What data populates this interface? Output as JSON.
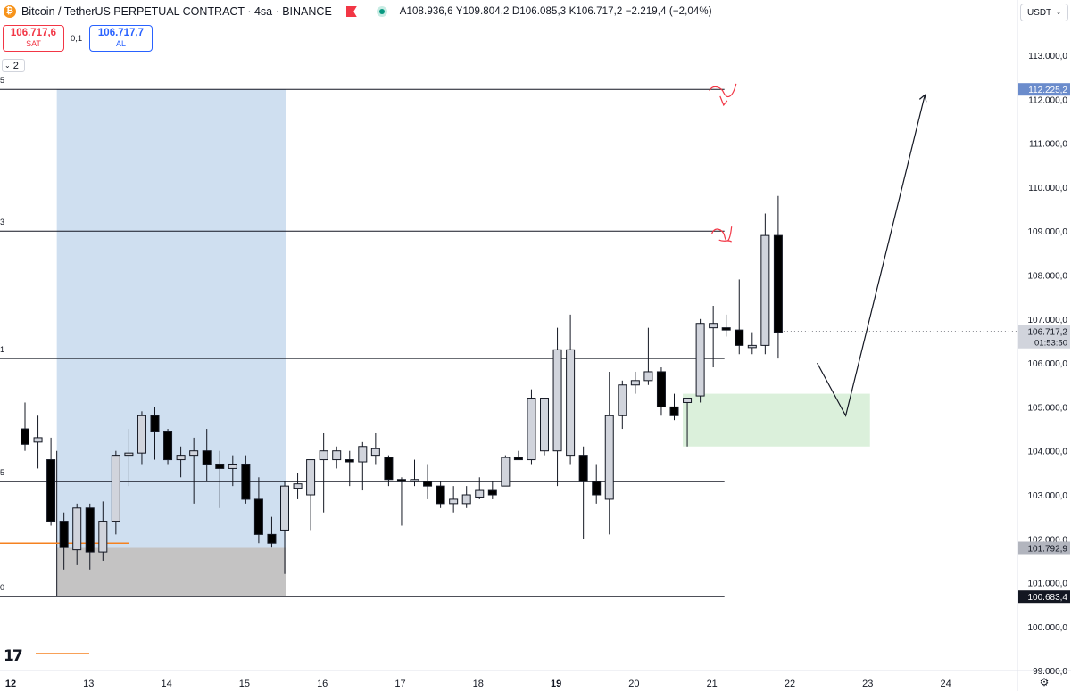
{
  "header": {
    "title": "Bitcoin / TetherUS PERPETUAL CONTRACT · 4sa · BINANCE",
    "ohlc": "A108.936,6 Y109.804,2 D106.085,3 K106.717,2 −2.219,4 (−2,04%)",
    "logo_glyph": "₿"
  },
  "trade": {
    "sell_price": "106.717,6",
    "sell_label": "SAT",
    "spread": "0,1",
    "buy_price": "106.717,7",
    "buy_label": "AL"
  },
  "indicators": {
    "count": "2",
    "chevron": "⌄"
  },
  "currency": {
    "label": "USDT",
    "chevron": "⌄"
  },
  "logo_text": "17",
  "settings_glyph": "⚙",
  "colors": {
    "bull_fill": "#d1d4dc",
    "bear_fill": "#000000",
    "candle_border": "#131722",
    "range_box": "#cfdff0",
    "discount_box": "#c4c3c3",
    "demand_zone": "#dbf0db",
    "annotation": "#f23645",
    "highlight_label": "#6b8ccc",
    "orange": "#f58220"
  },
  "chart_data": {
    "type": "candlestick",
    "timeframe": "4sa",
    "ylim": [
      98900,
      113600
    ],
    "xlabels": [
      {
        "label": "12",
        "x": 0,
        "bold": true
      },
      {
        "label": "13",
        "x": 6
      },
      {
        "label": "14",
        "x": 12
      },
      {
        "label": "15",
        "x": 18
      },
      {
        "label": "16",
        "x": 24
      },
      {
        "label": "17",
        "x": 30
      },
      {
        "label": "18",
        "x": 36
      },
      {
        "label": "19",
        "x": 42,
        "bold": true
      },
      {
        "label": "20",
        "x": 48
      },
      {
        "label": "21",
        "x": 54
      },
      {
        "label": "22",
        "x": 60
      },
      {
        "label": "23",
        "x": 66
      },
      {
        "label": "24",
        "x": 72
      }
    ],
    "yticks": [
      {
        "value": 113000,
        "label": "113.000,0"
      },
      {
        "value": 112000,
        "label": "112.000,0"
      },
      {
        "value": 111000,
        "label": "111.000,0"
      },
      {
        "value": 110000,
        "label": "110.000,0"
      },
      {
        "value": 109000,
        "label": "109.000,0"
      },
      {
        "value": 108000,
        "label": "108.000,0"
      },
      {
        "value": 107000,
        "label": "107.000,0"
      },
      {
        "value": 106000,
        "label": "106.000,0"
      },
      {
        "value": 105000,
        "label": "105.000,0"
      },
      {
        "value": 104000,
        "label": "104.000,0"
      },
      {
        "value": 103000,
        "label": "103.000,0"
      },
      {
        "value": 102000,
        "label": "102.000,0"
      },
      {
        "value": 101000,
        "label": "101.000,0"
      },
      {
        "value": 100000,
        "label": "100.000,0"
      },
      {
        "value": 99000,
        "label": "99.000,0"
      }
    ],
    "price_labels": [
      {
        "value": 112225.2,
        "label": "112.225,2",
        "style": "highlight"
      },
      {
        "value": 106717.2,
        "label": "106.717,2",
        "sub": "01:53:50",
        "style": "current"
      },
      {
        "value": 101792.9,
        "label": "101.792,9",
        "style": "gray"
      },
      {
        "value": 100683.4,
        "label": "100.683,4",
        "style": "dark"
      }
    ],
    "candles": [
      {
        "x": 1.1,
        "o": 104500,
        "h": 105100,
        "l": 104000,
        "c": 104150
      },
      {
        "x": 2.1,
        "o": 104200,
        "h": 104800,
        "l": 103600,
        "c": 104300
      },
      {
        "x": 3.1,
        "o": 103800,
        "h": 104300,
        "l": 102300,
        "c": 102400
      },
      {
        "x": 4.1,
        "o": 102400,
        "h": 102600,
        "l": 101300,
        "c": 101800
      },
      {
        "x": 5.1,
        "o": 101750,
        "h": 102800,
        "l": 101400,
        "c": 102700
      },
      {
        "x": 6.1,
        "o": 102700,
        "h": 102800,
        "l": 101300,
        "c": 101700
      },
      {
        "x": 7.1,
        "o": 101700,
        "h": 102850,
        "l": 101500,
        "c": 102400
      },
      {
        "x": 8.1,
        "o": 102400,
        "h": 104000,
        "l": 102100,
        "c": 103900
      },
      {
        "x": 9.1,
        "o": 103900,
        "h": 104500,
        "l": 103200,
        "c": 103950
      },
      {
        "x": 10.1,
        "o": 103950,
        "h": 104900,
        "l": 103700,
        "c": 104800
      },
      {
        "x": 11.1,
        "o": 104800,
        "h": 105000,
        "l": 103800,
        "c": 104450
      },
      {
        "x": 12.1,
        "o": 104450,
        "h": 104500,
        "l": 103700,
        "c": 103800
      },
      {
        "x": 13.1,
        "o": 103800,
        "h": 104100,
        "l": 103400,
        "c": 103900
      },
      {
        "x": 14.1,
        "o": 103900,
        "h": 104300,
        "l": 102800,
        "c": 104000
      },
      {
        "x": 15.1,
        "o": 104000,
        "h": 104500,
        "l": 103300,
        "c": 103700
      },
      {
        "x": 16.1,
        "o": 103700,
        "h": 104000,
        "l": 102700,
        "c": 103600
      },
      {
        "x": 17.1,
        "o": 103600,
        "h": 103900,
        "l": 103200,
        "c": 103700
      },
      {
        "x": 18.1,
        "o": 103700,
        "h": 103900,
        "l": 102800,
        "c": 102900
      },
      {
        "x": 19.1,
        "o": 102900,
        "h": 103400,
        "l": 101900,
        "c": 102100
      },
      {
        "x": 20.1,
        "o": 102100,
        "h": 102500,
        "l": 101800,
        "c": 101900
      },
      {
        "x": 21.1,
        "o": 102200,
        "h": 103300,
        "l": 101200,
        "c": 103200
      },
      {
        "x": 22.1,
        "o": 103150,
        "h": 103500,
        "l": 102900,
        "c": 103250
      },
      {
        "x": 23.1,
        "o": 103000,
        "h": 103800,
        "l": 102200,
        "c": 103800
      },
      {
        "x": 24.1,
        "o": 103800,
        "h": 104400,
        "l": 102600,
        "c": 104000
      },
      {
        "x": 25.1,
        "o": 103800,
        "h": 104100,
        "l": 103600,
        "c": 104000
      },
      {
        "x": 26.1,
        "o": 103800,
        "h": 104000,
        "l": 103200,
        "c": 103750
      },
      {
        "x": 27.1,
        "o": 103750,
        "h": 104200,
        "l": 103100,
        "c": 104100
      },
      {
        "x": 28.1,
        "o": 103900,
        "h": 104400,
        "l": 103700,
        "c": 104050
      },
      {
        "x": 29.1,
        "o": 103850,
        "h": 103900,
        "l": 103200,
        "c": 103350
      },
      {
        "x": 30.1,
        "o": 103350,
        "h": 103400,
        "l": 102300,
        "c": 103300
      },
      {
        "x": 31.1,
        "o": 103300,
        "h": 103800,
        "l": 103200,
        "c": 103350
      },
      {
        "x": 32.1,
        "o": 103300,
        "h": 103700,
        "l": 102900,
        "c": 103200
      },
      {
        "x": 33.1,
        "o": 103200,
        "h": 103300,
        "l": 102700,
        "c": 102800
      },
      {
        "x": 34.1,
        "o": 102800,
        "h": 103200,
        "l": 102600,
        "c": 102900
      },
      {
        "x": 35.1,
        "o": 102800,
        "h": 103200,
        "l": 102700,
        "c": 103000
      },
      {
        "x": 36.1,
        "o": 102950,
        "h": 103400,
        "l": 102900,
        "c": 103100
      },
      {
        "x": 37.1,
        "o": 103100,
        "h": 103300,
        "l": 102900,
        "c": 103000
      },
      {
        "x": 38.1,
        "o": 103200,
        "h": 103900,
        "l": 103200,
        "c": 103850
      },
      {
        "x": 39.1,
        "o": 103850,
        "h": 104000,
        "l": 103800,
        "c": 103800
      },
      {
        "x": 40.1,
        "o": 103800,
        "h": 105400,
        "l": 103700,
        "c": 105200
      },
      {
        "x": 41.1,
        "o": 104000,
        "h": 105200,
        "l": 103900,
        "c": 105200
      },
      {
        "x": 42.1,
        "o": 104000,
        "h": 106800,
        "l": 103200,
        "c": 106300
      },
      {
        "x": 43.1,
        "o": 103900,
        "h": 107100,
        "l": 103700,
        "c": 106300
      },
      {
        "x": 44.1,
        "o": 103900,
        "h": 104100,
        "l": 102000,
        "c": 103300
      },
      {
        "x": 45.1,
        "o": 103300,
        "h": 103700,
        "l": 102800,
        "c": 103000
      },
      {
        "x": 46.1,
        "o": 102900,
        "h": 105800,
        "l": 102100,
        "c": 104800
      },
      {
        "x": 47.1,
        "o": 104800,
        "h": 105600,
        "l": 104500,
        "c": 105500
      },
      {
        "x": 48.1,
        "o": 105500,
        "h": 105800,
        "l": 105300,
        "c": 105600
      },
      {
        "x": 49.1,
        "o": 105600,
        "h": 106800,
        "l": 105500,
        "c": 105800
      },
      {
        "x": 50.1,
        "o": 105800,
        "h": 105900,
        "l": 104800,
        "c": 105000
      },
      {
        "x": 51.1,
        "o": 105000,
        "h": 105300,
        "l": 104700,
        "c": 104800
      },
      {
        "x": 52.1,
        "o": 105100,
        "h": 105200,
        "l": 104100,
        "c": 105200
      },
      {
        "x": 53.1,
        "o": 105250,
        "h": 107000,
        "l": 105100,
        "c": 106900
      },
      {
        "x": 54.1,
        "o": 106800,
        "h": 107300,
        "l": 105900,
        "c": 106900
      },
      {
        "x": 55.1,
        "o": 106800,
        "h": 107100,
        "l": 106600,
        "c": 106750
      },
      {
        "x": 56.1,
        "o": 106750,
        "h": 107900,
        "l": 106200,
        "c": 106400
      },
      {
        "x": 57.1,
        "o": 106350,
        "h": 106700,
        "l": 106200,
        "c": 106400
      },
      {
        "x": 58.1,
        "o": 106400,
        "h": 109400,
        "l": 106200,
        "c": 108900
      },
      {
        "x": 59.1,
        "o": 108900,
        "h": 109800,
        "l": 106100,
        "c": 106700
      }
    ],
    "level_labels": [
      {
        "value": 112225.2,
        "label": "5"
      },
      {
        "value": 109000,
        "label": "3"
      },
      {
        "value": 106100,
        "label": "1"
      },
      {
        "value": 103300,
        "label": "5"
      },
      {
        "value": 100683.4,
        "label": "0"
      }
    ]
  }
}
